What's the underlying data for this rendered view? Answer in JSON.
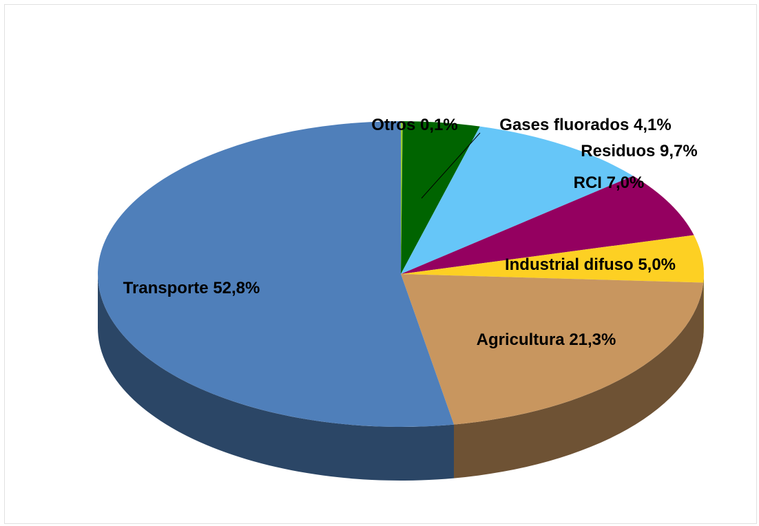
{
  "chart_data": {
    "type": "pie3d",
    "categories": [
      "Otros",
      "Gases fluorados",
      "Residuos",
      "RCI",
      "Industrial difuso",
      "Agricultura",
      "Transporte"
    ],
    "values": [
      0.1,
      4.1,
      9.7,
      7.0,
      5.0,
      21.3,
      52.8
    ],
    "value_labels": [
      "0,1%",
      "4,1%",
      "9,7%",
      "7,0%",
      "5,0%",
      "21,3%",
      "52,8%"
    ],
    "colors": [
      "#9acd32",
      "#006400",
      "#66c6f8",
      "#940060",
      "#fdd023",
      "#c8965f",
      "#4f7fba"
    ]
  }
}
